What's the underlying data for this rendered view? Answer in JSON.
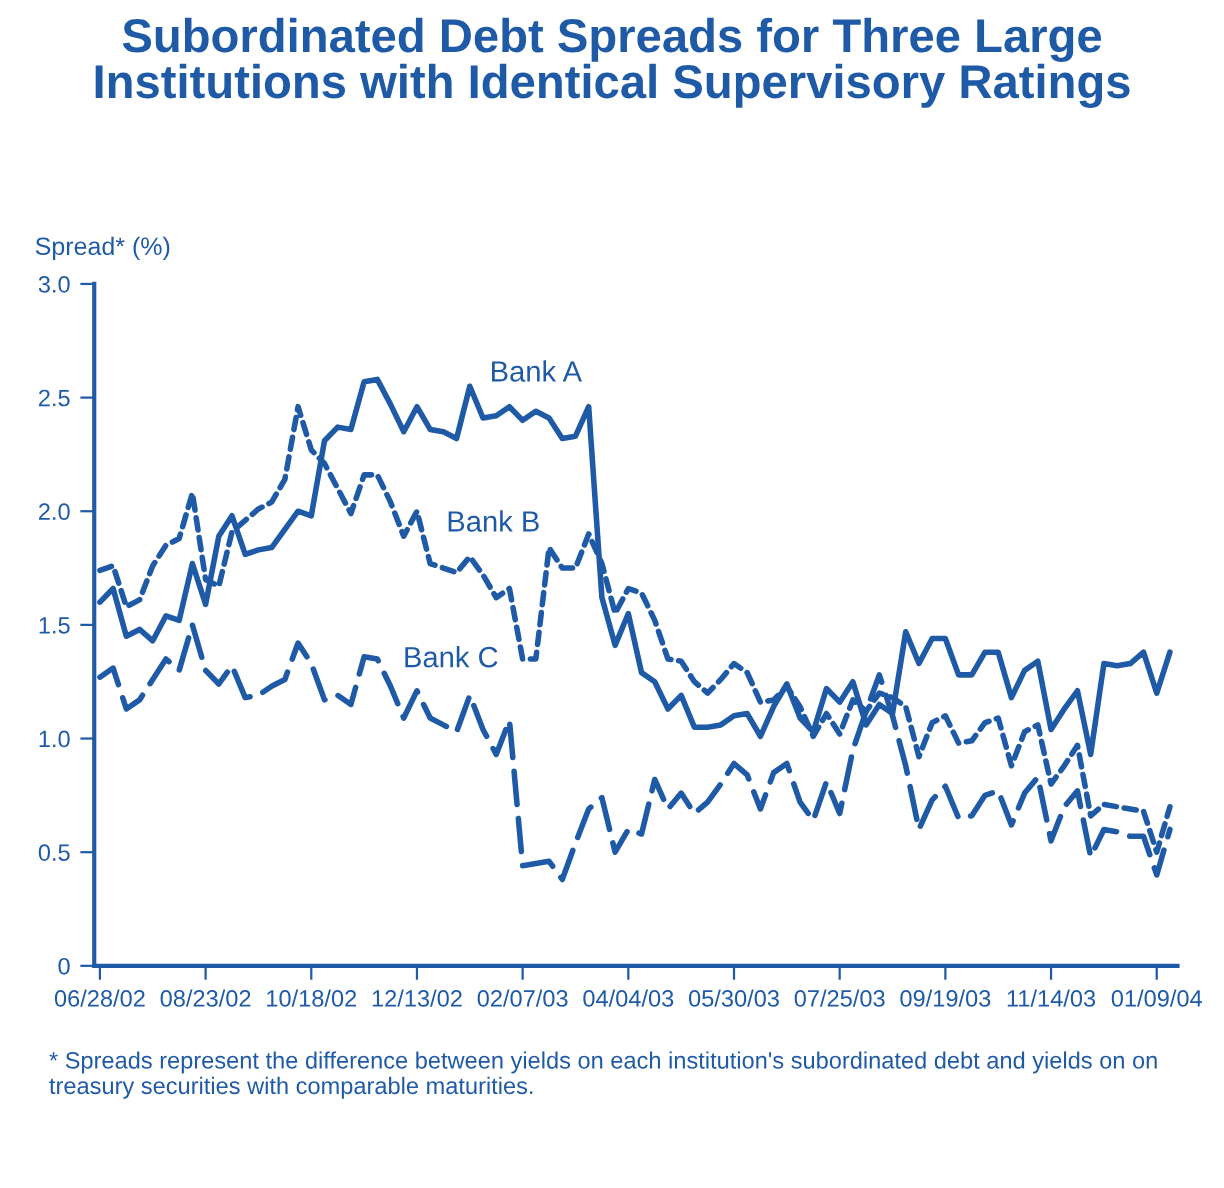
{
  "chart_data": {
    "type": "line",
    "title": "Subordinated Debt Spreads for Three Large\nInstitutions with Identical Supervisory Ratings",
    "ylabel": "Spread* (%)",
    "x": [
      "2002-06-28",
      "2002-07-05",
      "2002-07-12",
      "2002-07-19",
      "2002-07-26",
      "2002-08-02",
      "2002-08-09",
      "2002-08-16",
      "2002-08-23",
      "2002-08-30",
      "2002-09-06",
      "2002-09-13",
      "2002-09-20",
      "2002-09-27",
      "2002-10-04",
      "2002-10-11",
      "2002-10-18",
      "2002-10-25",
      "2002-11-01",
      "2002-11-08",
      "2002-11-15",
      "2002-11-22",
      "2002-11-29",
      "2002-12-06",
      "2002-12-13",
      "2002-12-20",
      "2002-12-27",
      "2003-01-03",
      "2003-01-10",
      "2003-01-17",
      "2003-01-24",
      "2003-01-31",
      "2003-02-07",
      "2003-02-14",
      "2003-02-21",
      "2003-02-28",
      "2003-03-07",
      "2003-03-14",
      "2003-03-21",
      "2003-03-28",
      "2003-04-04",
      "2003-04-11",
      "2003-04-18",
      "2003-04-25",
      "2003-05-02",
      "2003-05-09",
      "2003-05-16",
      "2003-05-23",
      "2003-05-30",
      "2003-06-06",
      "2003-06-13",
      "2003-06-20",
      "2003-06-27",
      "2003-07-04",
      "2003-07-11",
      "2003-07-18",
      "2003-07-25",
      "2003-08-01",
      "2003-08-08",
      "2003-08-15",
      "2003-08-22",
      "2003-08-29",
      "2003-09-05",
      "2003-09-12",
      "2003-09-19",
      "2003-09-26",
      "2003-10-03",
      "2003-10-10",
      "2003-10-17",
      "2003-10-24",
      "2003-10-31",
      "2003-11-07",
      "2003-11-14",
      "2003-11-21",
      "2003-11-28",
      "2003-12-05",
      "2003-12-12",
      "2003-12-19",
      "2003-12-26",
      "2004-01-02",
      "2004-01-09",
      "2004-01-16"
    ],
    "series": [
      {
        "name": "Bank A",
        "color": "#1f5aa6",
        "line_style": "solid",
        "values": [
          1.6,
          1.66,
          1.45,
          1.48,
          1.43,
          1.54,
          1.52,
          1.77,
          1.59,
          1.89,
          1.98,
          1.81,
          1.83,
          1.84,
          1.92,
          2.0,
          1.98,
          2.31,
          2.37,
          2.36,
          2.57,
          2.58,
          2.47,
          2.35,
          2.46,
          2.36,
          2.35,
          2.32,
          2.55,
          2.41,
          2.42,
          2.46,
          2.4,
          2.44,
          2.41,
          2.32,
          2.33,
          2.46,
          1.62,
          1.41,
          1.55,
          1.29,
          1.25,
          1.13,
          1.19,
          1.05,
          1.05,
          1.06,
          1.1,
          1.11,
          1.01,
          1.14,
          1.24,
          1.09,
          1.03,
          1.22,
          1.16,
          1.25,
          1.06,
          1.15,
          1.11,
          1.47,
          1.33,
          1.44,
          1.44,
          1.28,
          1.28,
          1.38,
          1.38,
          1.18,
          1.3,
          1.34,
          1.04,
          1.13,
          1.21,
          0.93,
          1.33,
          1.32,
          1.33,
          1.38,
          1.2,
          1.38
        ]
      },
      {
        "name": "Bank B",
        "color": "#1f5aa6",
        "line_style": "dotted",
        "values": [
          1.74,
          1.76,
          1.58,
          1.61,
          1.76,
          1.85,
          1.88,
          2.08,
          1.7,
          1.67,
          1.91,
          1.96,
          2.01,
          2.04,
          2.14,
          2.46,
          2.27,
          2.21,
          2.1,
          1.99,
          2.16,
          2.16,
          2.04,
          1.89,
          2.0,
          1.77,
          1.75,
          1.73,
          1.8,
          1.72,
          1.62,
          1.66,
          1.35,
          1.35,
          1.84,
          1.75,
          1.75,
          1.9,
          1.77,
          1.55,
          1.66,
          1.64,
          1.52,
          1.35,
          1.34,
          1.25,
          1.2,
          1.26,
          1.33,
          1.29,
          1.16,
          1.17,
          1.23,
          1.14,
          1.01,
          1.11,
          1.02,
          1.17,
          1.12,
          1.2,
          1.18,
          1.14,
          0.92,
          1.07,
          1.1,
          0.98,
          0.99,
          1.07,
          1.09,
          0.88,
          1.03,
          1.06,
          0.8,
          0.88,
          0.97,
          0.66,
          0.71,
          0.7,
          0.69,
          0.68,
          0.5,
          0.7
        ]
      },
      {
        "name": "Bank C",
        "color": "#1f5aa6",
        "line_style": "dashed",
        "values": [
          1.27,
          1.31,
          1.13,
          1.17,
          1.26,
          1.35,
          1.3,
          1.5,
          1.3,
          1.24,
          1.32,
          1.18,
          1.19,
          1.23,
          1.26,
          1.42,
          1.33,
          1.17,
          1.19,
          1.15,
          1.36,
          1.35,
          1.23,
          1.09,
          1.21,
          1.09,
          1.06,
          1.03,
          1.19,
          1.04,
          0.93,
          1.08,
          0.44,
          0.45,
          0.46,
          0.38,
          0.54,
          0.69,
          0.74,
          0.5,
          0.6,
          0.58,
          0.82,
          0.69,
          0.76,
          0.67,
          0.72,
          0.8,
          0.89,
          0.84,
          0.69,
          0.85,
          0.89,
          0.72,
          0.64,
          0.81,
          0.67,
          0.95,
          1.12,
          1.28,
          1.1,
          0.88,
          0.6,
          0.73,
          0.79,
          0.65,
          0.66,
          0.75,
          0.77,
          0.62,
          0.76,
          0.83,
          0.55,
          0.7,
          0.77,
          0.48,
          0.6,
          0.59,
          0.57,
          0.57,
          0.4,
          0.6
        ]
      }
    ],
    "annotations": [
      "* Spreads represent the difference between yields on each institution's subordinated debt and yields on on treasury securities with comparable maturities."
    ],
    "xlim": [
      "2002-06-25",
      "2004-01-20"
    ],
    "xticks": [
      {
        "value": "2002-06-28",
        "label": "06/28/02"
      },
      {
        "value": "2002-08-23",
        "label": "08/23/02"
      },
      {
        "value": "2002-10-18",
        "label": "10/18/02"
      },
      {
        "value": "2002-12-13",
        "label": "12/13/02"
      },
      {
        "value": "2003-02-07",
        "label": "02/07/03"
      },
      {
        "value": "2003-04-04",
        "label": "04/04/03"
      },
      {
        "value": "2003-05-30",
        "label": "05/30/03"
      },
      {
        "value": "2003-07-25",
        "label": "07/25/03"
      },
      {
        "value": "2003-09-19",
        "label": "09/19/03"
      },
      {
        "value": "2003-11-14",
        "label": "11/14/03"
      },
      {
        "value": "2004-01-09",
        "label": "01/09/04"
      }
    ],
    "ylim": [
      0,
      3
    ],
    "yticks": [
      0,
      0.5,
      {
        "value": 1,
        "label": "1.0"
      },
      1.5,
      {
        "value": 2,
        "label": "2.0"
      },
      2.5,
      {
        "value": 3,
        "label": "3.0"
      }
    ],
    "grid": false,
    "legend": false,
    "marker": "none"
  }
}
